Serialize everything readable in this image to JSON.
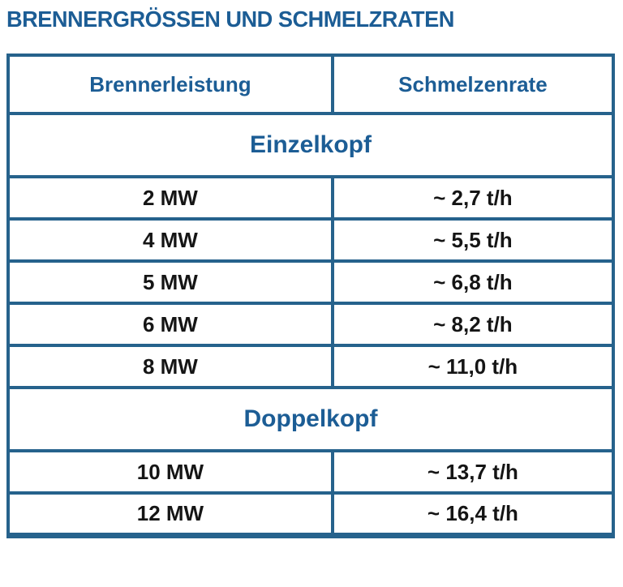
{
  "title": "BRENNERGRÖSSEN UND SCHMELZRATEN",
  "colors": {
    "heading_blue": "#1c5d95",
    "border_blue": "#26628c",
    "data_text": "#151515",
    "background": "#ffffff"
  },
  "table": {
    "columns": [
      "Brennerleistung",
      "Schmelzenrate"
    ],
    "sections": [
      {
        "label": "Einzelkopf",
        "rows": [
          {
            "power": "2 MW",
            "rate": "~ 2,7 t/h"
          },
          {
            "power": "4 MW",
            "rate": "~ 5,5 t/h"
          },
          {
            "power": "5 MW",
            "rate": "~ 6,8 t/h"
          },
          {
            "power": "6 MW",
            "rate": "~ 8,2 t/h"
          },
          {
            "power": "8 MW",
            "rate": "~ 11,0 t/h"
          }
        ]
      },
      {
        "label": "Doppelkopf",
        "rows": [
          {
            "power": "10 MW",
            "rate": "~ 13,7 t/h"
          },
          {
            "power": "12 MW",
            "rate": "~ 16,4 t/h"
          }
        ]
      }
    ]
  }
}
